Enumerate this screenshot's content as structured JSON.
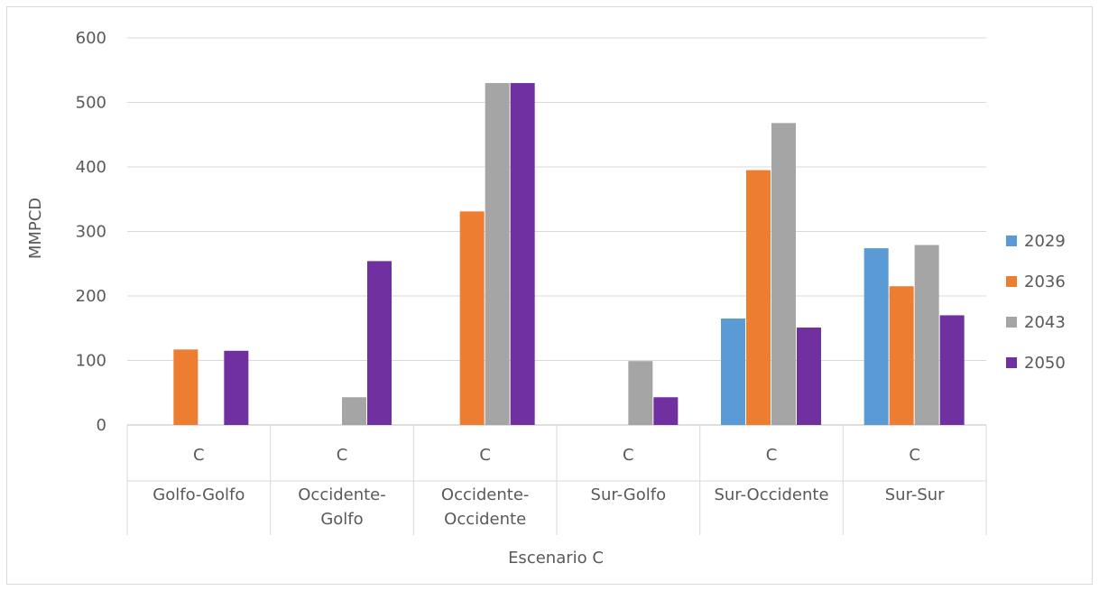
{
  "chart_data": {
    "type": "bar",
    "title": "",
    "xlabel": "Escenario C",
    "ylabel": "MMPCD",
    "ylim": [
      0,
      600
    ],
    "yticks": [
      0,
      100,
      200,
      300,
      400,
      500,
      600
    ],
    "grid": true,
    "legend_position": "right",
    "category_level1": "C",
    "categories": [
      [
        "Golfo-Golfo"
      ],
      [
        "Occidente-",
        "Golfo"
      ],
      [
        "Occidente-",
        "Occidente"
      ],
      [
        "Sur-Golfo"
      ],
      [
        "Sur-Occidente"
      ],
      [
        "Sur-Sur"
      ]
    ],
    "series": [
      {
        "name": "2029",
        "color": "#5b9bd5",
        "values": [
          0,
          0,
          0,
          0,
          165,
          274
        ]
      },
      {
        "name": "2036",
        "color": "#ed7d31",
        "values": [
          117,
          0,
          331,
          0,
          395,
          215
        ]
      },
      {
        "name": "2043",
        "color": "#a5a5a5",
        "values": [
          0,
          43,
          530,
          99,
          468,
          279
        ]
      },
      {
        "name": "2050",
        "color": "#7030a0",
        "values": [
          115,
          254,
          530,
          43,
          151,
          170
        ]
      }
    ]
  }
}
